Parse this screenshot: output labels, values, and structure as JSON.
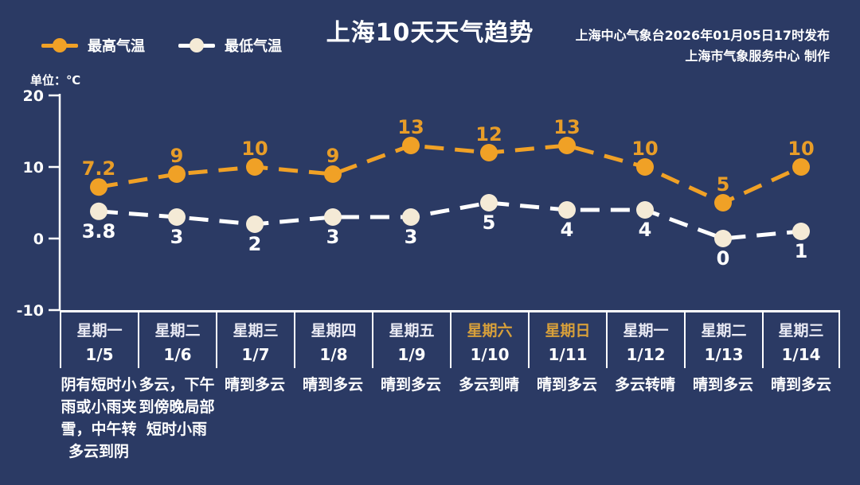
{
  "header": {
    "source_line1": "上海中心气象台2026年01月05日17时发布",
    "source_line2": "上海市气象服务中心  制作"
  },
  "colors": {
    "background": "#2b3a64",
    "high": "#f0a126",
    "high_label": "#e89d28",
    "low_line": "#ffffff",
    "low_marker_fill": "#f4ead6",
    "low_label": "#ffffff",
    "weekend_text": "#d8a03a",
    "axis": "#ffffff"
  },
  "chart_data": {
    "type": "line",
    "title": "上海10天天气趋势",
    "ylabel": "单位：℃",
    "ylim": [
      -10,
      20
    ],
    "yticks": [
      20,
      10,
      0,
      -10
    ],
    "grid": false,
    "legend_position": "top-left",
    "categories_weekday": [
      "星期一",
      "星期二",
      "星期三",
      "星期四",
      "星期五",
      "星期六",
      "星期日",
      "星期一",
      "星期二",
      "星期三"
    ],
    "categories_date": [
      "1/5",
      "1/6",
      "1/7",
      "1/8",
      "1/9",
      "1/10",
      "1/11",
      "1/12",
      "1/13",
      "1/14"
    ],
    "weekend_indices": [
      5,
      6
    ],
    "descriptions": [
      "阴有短时小雨或小雨夹雪，中午转多云到阴",
      "多云，下午到傍晚局部短时小雨",
      "晴到多云",
      "晴到多云",
      "晴到多云",
      "多云到晴",
      "晴到多云",
      "多云转晴",
      "晴到多云",
      "晴到多云"
    ],
    "series": [
      {
        "name": "最高气温",
        "values": [
          7.2,
          9,
          10,
          9,
          13,
          12,
          13,
          10,
          5,
          10
        ]
      },
      {
        "name": "最低气温",
        "values": [
          3.8,
          3,
          2,
          3,
          3,
          5,
          4,
          4,
          0,
          1
        ]
      }
    ]
  }
}
